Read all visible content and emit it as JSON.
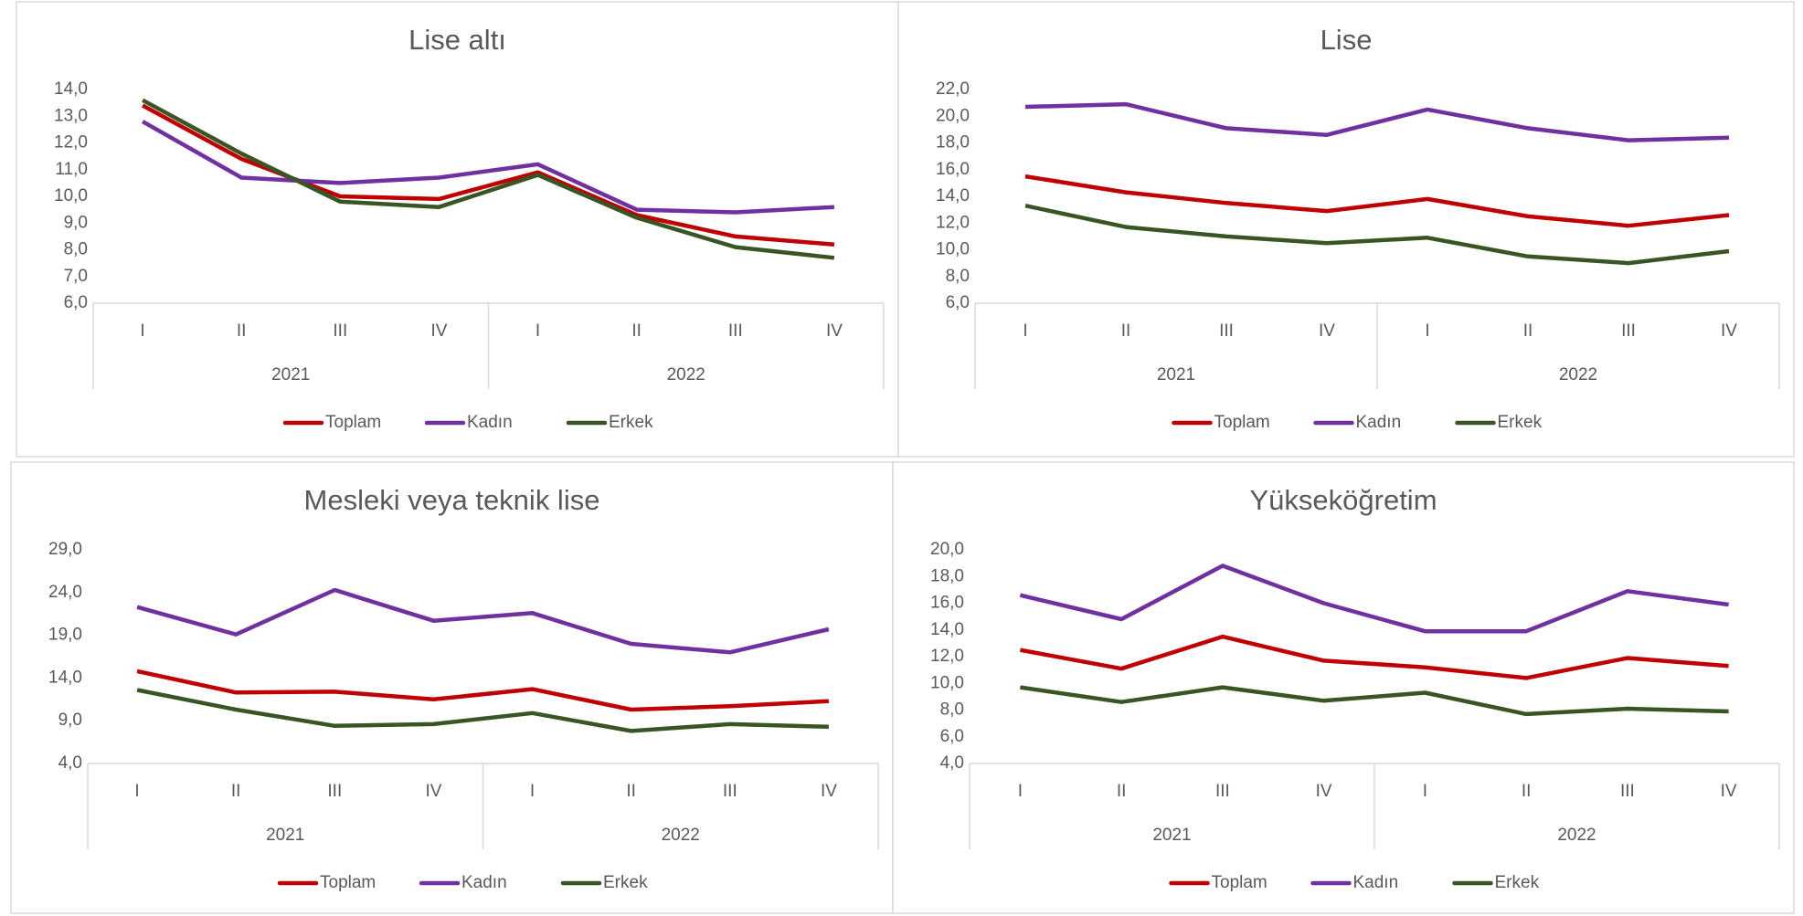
{
  "chart_data": [
    {
      "type": "line",
      "title": "Lise altı",
      "categories": [
        "I",
        "II",
        "III",
        "IV",
        "I",
        "II",
        "III",
        "IV"
      ],
      "category_groups": [
        "2021",
        "2022"
      ],
      "series": [
        {
          "name": "Toplam",
          "color": "#c00000",
          "values": [
            13.4,
            11.4,
            10.0,
            9.9,
            10.9,
            9.3,
            8.5,
            8.2
          ]
        },
        {
          "name": "Kadın",
          "color": "#7030a0",
          "values": [
            12.8,
            10.7,
            10.5,
            10.7,
            11.2,
            9.5,
            9.4,
            9.6
          ]
        },
        {
          "name": "Erkek",
          "color": "#375623",
          "values": [
            13.6,
            11.6,
            9.8,
            9.6,
            10.8,
            9.2,
            8.1,
            7.7
          ]
        }
      ],
      "ylim": [
        6,
        14
      ],
      "yticks": [
        {
          "value": 6,
          "label": "6,0"
        },
        {
          "value": 7,
          "label": "7,0"
        },
        {
          "value": 8,
          "label": "8,0"
        },
        {
          "value": 9,
          "label": "9,0"
        },
        {
          "value": 10,
          "label": "10,0"
        },
        {
          "value": 11,
          "label": "11,0"
        },
        {
          "value": 12,
          "label": "12,0"
        },
        {
          "value": 13,
          "label": "13,0"
        },
        {
          "value": 14,
          "label": "14,0"
        }
      ],
      "legend": "bottom"
    },
    {
      "type": "line",
      "title": "Lise",
      "categories": [
        "I",
        "II",
        "III",
        "IV",
        "I",
        "II",
        "III",
        "IV"
      ],
      "category_groups": [
        "2021",
        "2022"
      ],
      "series": [
        {
          "name": "Toplam",
          "color": "#c00000",
          "values": [
            15.5,
            14.3,
            13.5,
            12.9,
            13.8,
            12.5,
            11.8,
            12.6
          ]
        },
        {
          "name": "Kadın",
          "color": "#7030a0",
          "values": [
            20.7,
            20.9,
            19.1,
            18.6,
            20.5,
            19.1,
            18.2,
            18.4
          ]
        },
        {
          "name": "Erkek",
          "color": "#375623",
          "values": [
            13.3,
            11.7,
            11.0,
            10.5,
            10.9,
            9.5,
            9.0,
            9.9
          ]
        }
      ],
      "ylim": [
        6,
        22
      ],
      "yticks": [
        {
          "value": 6,
          "label": "6,0"
        },
        {
          "value": 8,
          "label": "8,0"
        },
        {
          "value": 10,
          "label": "10,0"
        },
        {
          "value": 12,
          "label": "12,0"
        },
        {
          "value": 14,
          "label": "14,0"
        },
        {
          "value": 16,
          "label": "16,0"
        },
        {
          "value": 18,
          "label": "18,0"
        },
        {
          "value": 20,
          "label": "20,0"
        },
        {
          "value": 22,
          "label": "22,0"
        }
      ],
      "legend": "bottom"
    },
    {
      "type": "line",
      "title": "Mesleki veya teknik lise",
      "categories": [
        "I",
        "II",
        "III",
        "IV",
        "I",
        "II",
        "III",
        "IV"
      ],
      "category_groups": [
        "2021",
        "2022"
      ],
      "series": [
        {
          "name": "Toplam",
          "color": "#c00000",
          "values": [
            14.8,
            12.3,
            12.4,
            11.5,
            12.7,
            10.3,
            10.7,
            11.3
          ]
        },
        {
          "name": "Kadın",
          "color": "#7030a0",
          "values": [
            22.3,
            19.1,
            24.3,
            20.7,
            21.6,
            18.0,
            17.0,
            19.7
          ]
        },
        {
          "name": "Erkek",
          "color": "#375623",
          "values": [
            12.6,
            10.3,
            8.4,
            8.6,
            9.9,
            7.8,
            8.6,
            8.3
          ]
        }
      ],
      "ylim": [
        4,
        29
      ],
      "yticks": [
        {
          "value": 4,
          "label": "4,0"
        },
        {
          "value": 9,
          "label": "9,0"
        },
        {
          "value": 14,
          "label": "14,0"
        },
        {
          "value": 19,
          "label": "19,0"
        },
        {
          "value": 24,
          "label": "24,0"
        },
        {
          "value": 29,
          "label": "29,0"
        }
      ],
      "legend": "bottom"
    },
    {
      "type": "line",
      "title": "Yükseköğretim",
      "categories": [
        "I",
        "II",
        "III",
        "IV",
        "I",
        "II",
        "III",
        "IV"
      ],
      "category_groups": [
        "2021",
        "2022"
      ],
      "series": [
        {
          "name": "Toplam",
          "color": "#c00000",
          "values": [
            12.5,
            11.1,
            13.5,
            11.7,
            11.2,
            10.4,
            11.9,
            11.3
          ]
        },
        {
          "name": "Kadın",
          "color": "#7030a0",
          "values": [
            16.6,
            14.8,
            18.8,
            16.0,
            13.9,
            13.9,
            16.9,
            15.9
          ]
        },
        {
          "name": "Erkek",
          "color": "#375623",
          "values": [
            9.7,
            8.6,
            9.7,
            8.7,
            9.3,
            7.7,
            8.1,
            7.9
          ]
        }
      ],
      "ylim": [
        4,
        20
      ],
      "yticks": [
        {
          "value": 4,
          "label": "4,0"
        },
        {
          "value": 6,
          "label": "6,0"
        },
        {
          "value": 8,
          "label": "8,0"
        },
        {
          "value": 10,
          "label": "10,0"
        },
        {
          "value": 12,
          "label": "12,0"
        },
        {
          "value": 14,
          "label": "14,0"
        },
        {
          "value": 16,
          "label": "16,0"
        },
        {
          "value": 18,
          "label": "18,0"
        },
        {
          "value": 20,
          "label": "20,0"
        }
      ],
      "legend": "bottom"
    }
  ]
}
